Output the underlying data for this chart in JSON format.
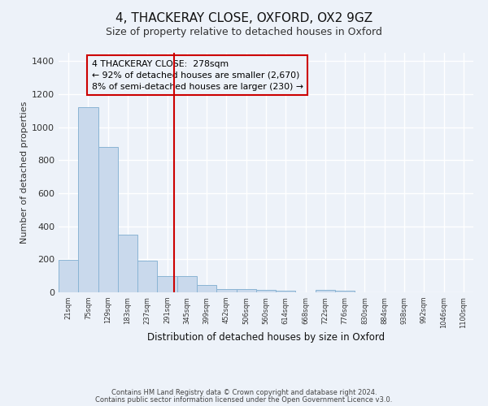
{
  "title": "4, THACKERAY CLOSE, OXFORD, OX2 9GZ",
  "subtitle": "Size of property relative to detached houses in Oxford",
  "xlabel": "Distribution of detached houses by size in Oxford",
  "ylabel": "Number of detached properties",
  "bar_color": "#c9d9ec",
  "bar_edge_color": "#8ab4d4",
  "categories": [
    "21sqm",
    "75sqm",
    "129sqm",
    "183sqm",
    "237sqm",
    "291sqm",
    "345sqm",
    "399sqm",
    "452sqm",
    "506sqm",
    "560sqm",
    "614sqm",
    "668sqm",
    "722sqm",
    "776sqm",
    "830sqm",
    "884sqm",
    "938sqm",
    "992sqm",
    "1046sqm",
    "1100sqm"
  ],
  "values": [
    195,
    1120,
    880,
    350,
    190,
    100,
    100,
    45,
    22,
    20,
    15,
    10,
    0,
    15,
    10,
    0,
    0,
    0,
    0,
    0,
    0
  ],
  "property_line_x": 5.35,
  "property_line_color": "#cc0000",
  "annotation_text": "4 THACKERAY CLOSE:  278sqm\n← 92% of detached houses are smaller (2,670)\n8% of semi-detached houses are larger (230) →",
  "annotation_box_color": "#cc0000",
  "ylim": [
    0,
    1450
  ],
  "yticks": [
    0,
    200,
    400,
    600,
    800,
    1000,
    1200,
    1400
  ],
  "footnote1": "Contains HM Land Registry data © Crown copyright and database right 2024.",
  "footnote2": "Contains public sector information licensed under the Open Government Licence v3.0.",
  "background_color": "#edf2f9",
  "grid_color": "#ffffff"
}
